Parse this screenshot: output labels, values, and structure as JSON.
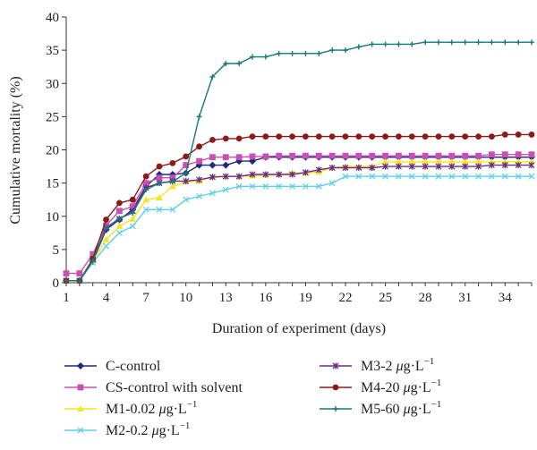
{
  "chart_data": {
    "type": "line",
    "xlabel": "Duration of experiment (days)",
    "ylabel": "Cumulative mortality (%)",
    "xlim": [
      1,
      36
    ],
    "ylim": [
      0,
      40
    ],
    "x_ticks": [
      1,
      4,
      7,
      10,
      13,
      16,
      19,
      22,
      25,
      28,
      31,
      34
    ],
    "y_ticks": [
      0,
      5,
      10,
      15,
      20,
      25,
      30,
      35,
      40
    ],
    "grid": false,
    "legend_position": "bottom",
    "x": [
      1,
      2,
      3,
      4,
      5,
      6,
      7,
      8,
      9,
      10,
      11,
      12,
      13,
      14,
      15,
      16,
      17,
      18,
      19,
      20,
      21,
      22,
      23,
      24,
      25,
      26,
      27,
      28,
      29,
      30,
      31,
      32,
      33,
      34,
      35,
      36
    ],
    "series": [
      {
        "name": "C-control",
        "color": "#1f2a7a",
        "marker": "diamond",
        "values": [
          0.3,
          0.3,
          3.2,
          8.0,
          9.5,
          11.0,
          14.5,
          16.3,
          16.3,
          16.5,
          17.7,
          17.7,
          17.7,
          18.3,
          18.3,
          18.9,
          18.9,
          18.9,
          18.9,
          18.9,
          18.9,
          18.9,
          18.9,
          18.9,
          18.9,
          18.9,
          18.9,
          18.9,
          18.9,
          18.9,
          18.9,
          18.9,
          18.9,
          18.9,
          18.9,
          18.9
        ]
      },
      {
        "name": "CS-control with solvent",
        "color": "#c84fb4",
        "marker": "square",
        "values": [
          1.4,
          1.4,
          4.3,
          8.6,
          10.8,
          11.5,
          15.0,
          15.8,
          15.8,
          17.7,
          18.3,
          18.9,
          18.9,
          18.9,
          19.0,
          19.0,
          19.1,
          19.1,
          19.1,
          19.1,
          19.1,
          19.1,
          19.1,
          19.1,
          19.1,
          19.1,
          19.1,
          19.1,
          19.1,
          19.1,
          19.1,
          19.1,
          19.3,
          19.3,
          19.3,
          19.3
        ]
      },
      {
        "name": "M1-0.02 μg·L⁻¹",
        "color": "#f2e61c",
        "marker": "triangle",
        "values": [
          0.3,
          0.3,
          3.2,
          6.5,
          8.5,
          9.6,
          12.5,
          12.8,
          14.5,
          15.2,
          15.3,
          16.0,
          16.0,
          16.0,
          16.1,
          16.2,
          16.3,
          16.5,
          16.5,
          16.7,
          17.3,
          17.5,
          17.5,
          17.5,
          18.2,
          18.2,
          18.2,
          18.2,
          18.2,
          18.2,
          18.2,
          18.2,
          18.2,
          18.2,
          18.2,
          18.2
        ]
      },
      {
        "name": "M2-0.2 μg·L⁻¹",
        "color": "#5fd0e6",
        "marker": "x",
        "values": [
          0.3,
          0.3,
          3.0,
          5.5,
          7.5,
          8.5,
          11.0,
          11.0,
          11.0,
          12.5,
          13.0,
          13.5,
          14.0,
          14.5,
          14.5,
          14.5,
          14.5,
          14.5,
          14.5,
          14.5,
          15.0,
          16.0,
          16.0,
          16.0,
          16.0,
          16.0,
          16.0,
          16.0,
          16.0,
          16.0,
          16.0,
          16.0,
          16.0,
          16.0,
          16.0,
          16.0
        ]
      },
      {
        "name": "M3-2 μg·L⁻¹",
        "color": "#6a2d86",
        "marker": "star",
        "values": [
          0.3,
          0.3,
          3.5,
          8.2,
          9.6,
          10.8,
          14.3,
          15.0,
          15.3,
          15.3,
          15.5,
          15.9,
          16.0,
          16.0,
          16.3,
          16.3,
          16.3,
          16.3,
          16.6,
          17.0,
          17.3,
          17.3,
          17.3,
          17.3,
          17.5,
          17.5,
          17.5,
          17.5,
          17.5,
          17.5,
          17.5,
          17.5,
          17.7,
          17.7,
          17.7,
          17.7
        ]
      },
      {
        "name": "M4-20 μg·L⁻¹",
        "color": "#8b1a1a",
        "marker": "circle",
        "values": [
          0.3,
          0.3,
          3.6,
          9.5,
          12.0,
          12.5,
          16.0,
          17.5,
          18.0,
          19.0,
          20.5,
          21.5,
          21.7,
          21.7,
          22.0,
          22.0,
          22.0,
          22.0,
          22.0,
          22.0,
          22.0,
          22.0,
          22.0,
          22.0,
          22.0,
          22.0,
          22.0,
          22.0,
          22.0,
          22.0,
          22.0,
          22.0,
          22.0,
          22.3,
          22.3,
          22.3
        ]
      },
      {
        "name": "M5-60 μg·L⁻¹",
        "color": "#137a77",
        "marker": "plus",
        "values": [
          0.3,
          0.3,
          3.3,
          8.3,
          9.7,
          10.5,
          14.0,
          15.0,
          15.2,
          16.5,
          25.0,
          31.0,
          33.0,
          33.0,
          34.0,
          34.0,
          34.5,
          34.5,
          34.5,
          34.5,
          35.0,
          35.0,
          35.5,
          35.9,
          35.9,
          35.9,
          35.9,
          36.2,
          36.2,
          36.2,
          36.2,
          36.2,
          36.2,
          36.2,
          36.2,
          36.2
        ]
      }
    ],
    "legend_left": [
      {
        "prefix": "C-control",
        "unit": false
      },
      {
        "prefix": "CS-control with solvent",
        "unit": false
      },
      {
        "prefix": "M1-0.02",
        "unit": true
      },
      {
        "prefix": "M2-0.2",
        "unit": true
      }
    ],
    "legend_right": [
      {
        "prefix": "M3-2",
        "unit": true
      },
      {
        "prefix": "M4-20",
        "unit": true
      },
      {
        "prefix": "M5-60",
        "unit": true
      }
    ],
    "unit_mu": "μ",
    "unit_g": "g·L",
    "unit_exp": "−1"
  }
}
